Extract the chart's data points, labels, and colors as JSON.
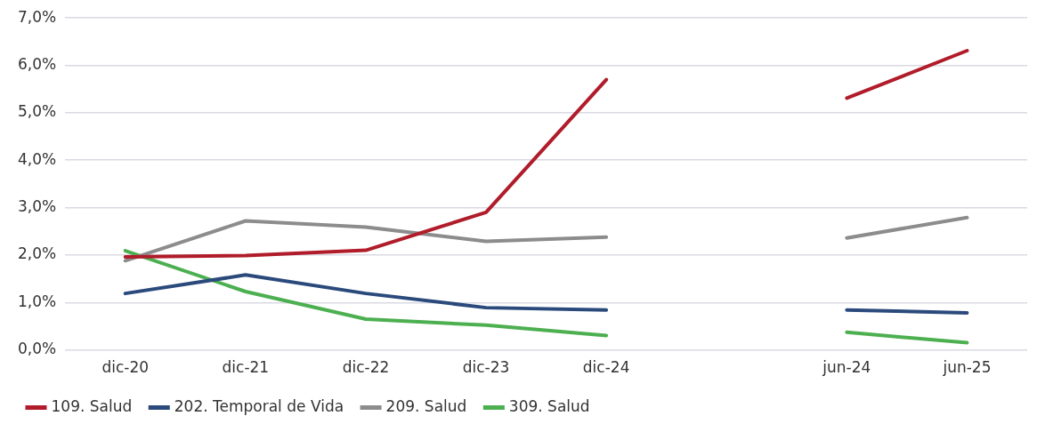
{
  "chart_data": {
    "type": "line",
    "categories": [
      "dic-20",
      "dic-21",
      "dic-22",
      "dic-23",
      "dic-24",
      null,
      "jun-24",
      "jun-25"
    ],
    "series": [
      {
        "name": "109. Salud",
        "color": "#b01c2a",
        "values": [
          1.96,
          1.99,
          2.1,
          2.9,
          5.7,
          null,
          5.31,
          6.31
        ]
      },
      {
        "name": "202. Temporal de Vida",
        "color": "#2b4a7c",
        "values": [
          1.19,
          1.58,
          1.19,
          0.89,
          0.84,
          null,
          0.84,
          0.78
        ]
      },
      {
        "name": "209. Salud",
        "color": "#8c8c8c",
        "values": [
          1.88,
          2.72,
          2.59,
          2.29,
          2.38,
          null,
          2.36,
          2.79
        ]
      },
      {
        "name": "309. Salud",
        "color": "#4caf50",
        "values": [
          2.09,
          1.23,
          0.65,
          0.52,
          0.3,
          null,
          0.37,
          0.15
        ]
      }
    ],
    "ylim": [
      0,
      7
    ],
    "yticks": [
      {
        "value": 0,
        "label": "0,0%"
      },
      {
        "value": 1,
        "label": "1,0%"
      },
      {
        "value": 2,
        "label": "2,0%"
      },
      {
        "value": 3,
        "label": "3,0%"
      },
      {
        "value": 4,
        "label": "4,0%"
      },
      {
        "value": 5,
        "label": "5,0%"
      },
      {
        "value": 6,
        "label": "6,0%"
      },
      {
        "value": 7,
        "label": "7,0%"
      }
    ],
    "grid": "y",
    "legend": "bottom",
    "marker": "none",
    "line_style": "solid"
  }
}
